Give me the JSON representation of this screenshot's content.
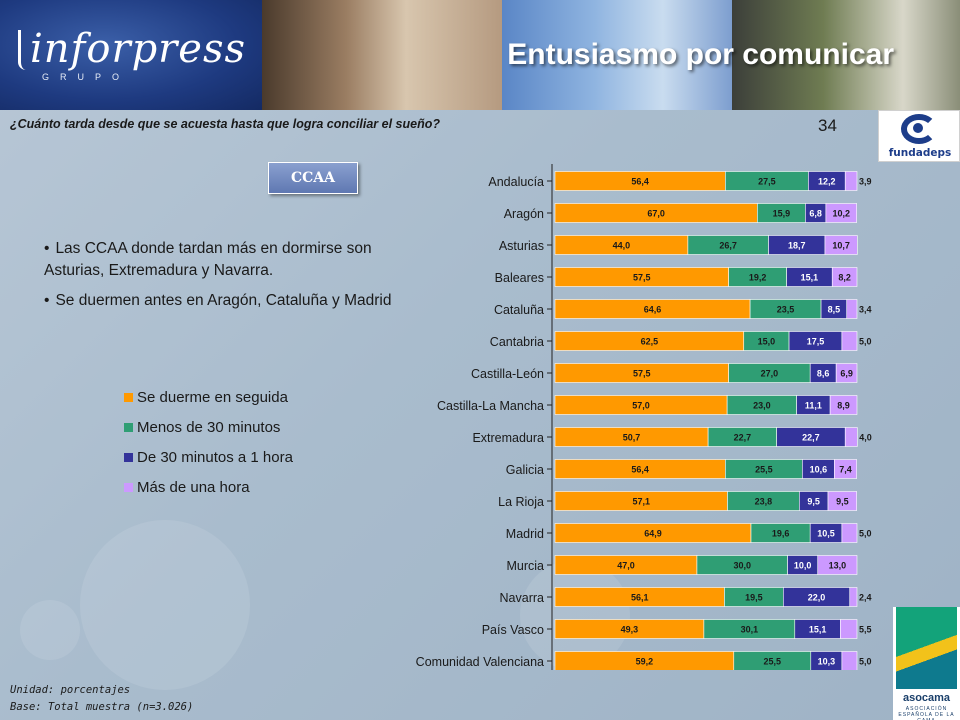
{
  "header": {
    "logo_text": "inforpress",
    "logo_sub": "GRUPO",
    "title": "Entusiasmo por comunicar"
  },
  "question": "¿Cuánto tarda desde que se acuesta hasta que logra conciliar el sueño?",
  "page_number": "34",
  "logos": {
    "fundadeps": "fundadeps",
    "asocama": "asocama",
    "asocama_sub": "ASOCIACIÓN ESPAÑOLA DE LA CAMA"
  },
  "section_button": "CCAA",
  "bullets": [
    "Las CCAA donde tardan más en dormirse son Asturias, Extremadura y Navarra.",
    "Se duermen antes en Aragón, Cataluña y Madrid"
  ],
  "footnotes": {
    "unit": "Unidad: porcentajes",
    "base": "Base: Total muestra (n=3.026)"
  },
  "colors": {
    "s1": "#ff9900",
    "s2": "#2f9e74",
    "s3": "#33339a",
    "s4": "#cc99ff"
  },
  "chart_data": {
    "type": "bar",
    "orientation": "horizontal",
    "stacked": true,
    "xlim": [
      0,
      100
    ],
    "grid": false,
    "legend_position": "left",
    "categories": [
      "Andalucía",
      "Aragón",
      "Asturias",
      "Baleares",
      "Cataluña",
      "Cantabria",
      "Castilla-León",
      "Castilla-La Mancha",
      "Extremadura",
      "Galicia",
      "La Rioja",
      "Madrid",
      "Murcia",
      "Navarra",
      "País Vasco",
      "Comunidad Valenciana"
    ],
    "series": [
      {
        "name": "Se duerme en seguida",
        "values": [
          56.4,
          67.0,
          44.0,
          57.5,
          64.6,
          62.5,
          57.5,
          57.0,
          50.7,
          56.4,
          57.1,
          64.9,
          47.0,
          56.1,
          49.3,
          59.2
        ]
      },
      {
        "name": "Menos de 30 minutos",
        "values": [
          27.5,
          15.9,
          26.7,
          19.2,
          23.5,
          15.0,
          27.0,
          23.0,
          22.7,
          25.5,
          23.8,
          19.6,
          30.0,
          19.5,
          30.1,
          25.5
        ]
      },
      {
        "name": "De 30 minutos a 1 hora",
        "values": [
          12.2,
          6.8,
          18.7,
          15.1,
          8.5,
          17.5,
          8.6,
          11.1,
          22.7,
          10.6,
          9.5,
          10.5,
          10.0,
          22.0,
          15.1,
          10.3
        ]
      },
      {
        "name": "Más de una hora",
        "values": [
          3.9,
          10.2,
          10.7,
          8.2,
          3.4,
          5.0,
          6.9,
          8.9,
          4.0,
          7.4,
          9.5,
          5.0,
          13.0,
          2.4,
          5.5,
          5.0
        ]
      }
    ],
    "labels": [
      [
        "56,4",
        "27,5",
        "12,2",
        "3,9"
      ],
      [
        "67,0",
        "15,9",
        "6,8",
        "10,2"
      ],
      [
        "44,0",
        "26,7",
        "18,7",
        "10,7"
      ],
      [
        "57,5",
        "19,2",
        "15,1",
        "8,2"
      ],
      [
        "64,6",
        "23,5",
        "8,5",
        "3,4"
      ],
      [
        "62,5",
        "15,0",
        "17,5",
        "5,0"
      ],
      [
        "57,5",
        "27,0",
        "8,6",
        "6,9"
      ],
      [
        "57,0",
        "23,0",
        "11,1",
        "8,9"
      ],
      [
        "50,7",
        "22,7",
        "22,7",
        "4,0"
      ],
      [
        "56,4",
        "25,5",
        "10,6",
        "7,4"
      ],
      [
        "57,1",
        "23,8",
        "9,5",
        "9,5"
      ],
      [
        "64,9",
        "19,6",
        "10,5",
        "5,0"
      ],
      [
        "47,0",
        "30,0",
        "10,0",
        "13,0"
      ],
      [
        "56,1",
        "19,5",
        "22,0",
        "2,4"
      ],
      [
        "49,3",
        "30,1",
        "15,1",
        "5,5"
      ],
      [
        "59,2",
        "25,5",
        "10,3",
        "5,0"
      ]
    ]
  }
}
